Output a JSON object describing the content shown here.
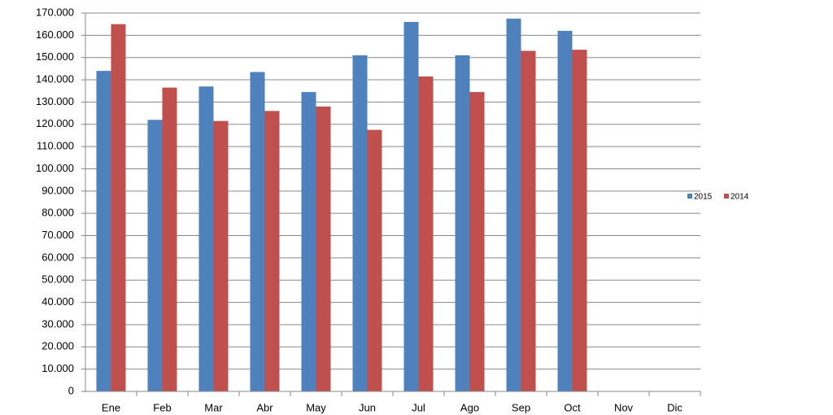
{
  "chart_data": {
    "type": "bar",
    "categories": [
      "Ene",
      "Feb",
      "Mar",
      "Abr",
      "May",
      "Jun",
      "Jul",
      "Ago",
      "Sep",
      "Oct",
      "Nov",
      "Dic"
    ],
    "series": [
      {
        "name": "2015",
        "color": "#4f81bd",
        "values": [
          144000,
          122000,
          137000,
          143500,
          134500,
          151000,
          166000,
          151000,
          167500,
          162000,
          null,
          null
        ]
      },
      {
        "name": "2014",
        "color": "#c0504d",
        "values": [
          165000,
          136500,
          121500,
          126000,
          128000,
          117500,
          141500,
          134500,
          153000,
          153500,
          null,
          null
        ]
      }
    ],
    "ylim": [
      0,
      170000
    ],
    "yticks": [
      0,
      {
        "value": 10000,
        "label": "10.000"
      },
      {
        "value": 20000,
        "label": "20.000"
      },
      {
        "value": 30000,
        "label": "30.000"
      },
      {
        "value": 40000,
        "label": "40.000"
      },
      {
        "value": 50000,
        "label": "50.000"
      },
      {
        "value": 60000,
        "label": "60.000"
      },
      {
        "value": 70000,
        "label": "70.000"
      },
      {
        "value": 80000,
        "label": "80.000"
      },
      {
        "value": 90000,
        "label": "90.000"
      },
      {
        "value": 100000,
        "label": "100.000"
      },
      {
        "value": 110000,
        "label": "110.000"
      },
      {
        "value": 120000,
        "label": "120.000"
      },
      {
        "value": 130000,
        "label": "130.000"
      },
      {
        "value": 140000,
        "label": "140.000"
      },
      {
        "value": 150000,
        "label": "150.000"
      },
      {
        "value": 160000,
        "label": "160.000"
      },
      {
        "value": 170000,
        "label": "170.000"
      }
    ],
    "grid": true,
    "legend": "right"
  }
}
